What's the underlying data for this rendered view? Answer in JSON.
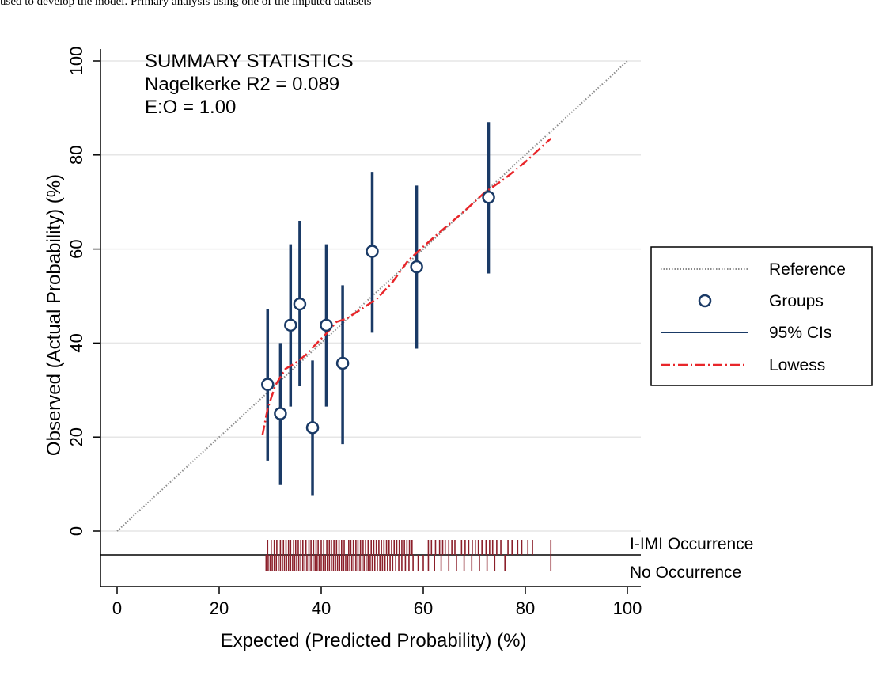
{
  "caption": "used to develop the model. Primary analysis using one of the imputed datasets",
  "colors": {
    "grid": "#e6e6e6",
    "reference": "#8a8a8a",
    "groups": "#1a3a66",
    "ci": "#1a3a66",
    "lowess": "#e8262a",
    "rug": "#8b1f2a",
    "axis": "#000000"
  },
  "chart_data": {
    "type": "scatter",
    "xlabel": "Expected (Predicted Probability) (%)",
    "ylabel": "Observed (Actual Probability) (%)",
    "xlim": [
      0,
      100
    ],
    "ylim": [
      0,
      100
    ],
    "xticks": [
      0,
      20,
      40,
      60,
      80,
      100
    ],
    "yticks": [
      0,
      20,
      40,
      60,
      80,
      100
    ],
    "grid": true,
    "summary": {
      "heading": "SUMMARY STATISTICS",
      "r2": "Nagelkerke R2 = 0.089",
      "eo": "E:O = 1.00"
    },
    "legend": {
      "placement": "right",
      "entries": [
        "Reference",
        "Groups",
        "95% CIs",
        "Lowess"
      ]
    },
    "reference_line": {
      "x": [
        0,
        100
      ],
      "y": [
        0,
        100
      ]
    },
    "groups": [
      {
        "x": 29.5,
        "y": 31.2,
        "lo": 15.0,
        "hi": 47.2
      },
      {
        "x": 32.0,
        "y": 25.0,
        "lo": 9.8,
        "hi": 40.0
      },
      {
        "x": 34.0,
        "y": 43.8,
        "lo": 26.5,
        "hi": 61.0
      },
      {
        "x": 35.8,
        "y": 48.3,
        "lo": 30.8,
        "hi": 66.0
      },
      {
        "x": 38.3,
        "y": 22.0,
        "lo": 7.5,
        "hi": 36.3
      },
      {
        "x": 41.0,
        "y": 43.8,
        "lo": 26.5,
        "hi": 61.0
      },
      {
        "x": 44.2,
        "y": 35.7,
        "lo": 18.5,
        "hi": 52.3
      },
      {
        "x": 50.0,
        "y": 59.5,
        "lo": 42.2,
        "hi": 76.4
      },
      {
        "x": 58.7,
        "y": 56.2,
        "lo": 38.8,
        "hi": 73.5
      },
      {
        "x": 72.8,
        "y": 71.0,
        "lo": 54.8,
        "hi": 87.0
      }
    ],
    "lowess": {
      "x": [
        28.5,
        29.5,
        31.0,
        33.0,
        35.0,
        37.0,
        39.0,
        41.0,
        43.0,
        45.0,
        48.0,
        51.0,
        54.0,
        57.0,
        60.0,
        64.0,
        68.0,
        72.0,
        76.0,
        80.0,
        85.0
      ],
      "y": [
        20.5,
        26.0,
        31.0,
        34.5,
        35.8,
        37.5,
        39.8,
        42.0,
        44.5,
        45.2,
        47.3,
        49.5,
        53.0,
        57.5,
        60.5,
        64.3,
        68.0,
        72.0,
        75.0,
        78.5,
        83.5
      ]
    },
    "rug": {
      "top_label": "I-IMI Occurrence",
      "bottom_label": "No Occurrence",
      "occurrence_x": [
        29.5,
        30.2,
        30.8,
        31.3,
        32.0,
        32.6,
        33.1,
        33.6,
        34.0,
        34.6,
        35.0,
        35.5,
        36.0,
        36.4,
        37.0,
        37.6,
        38.0,
        38.5,
        39.0,
        39.4,
        40.0,
        40.5,
        41.1,
        41.6,
        42.0,
        42.5,
        43.0,
        43.5,
        44.0,
        44.5,
        45.4,
        45.8,
        46.3,
        46.8,
        47.2,
        47.7,
        48.2,
        48.7,
        49.2,
        49.8,
        50.3,
        50.8,
        51.3,
        51.8,
        52.3,
        52.8,
        53.3,
        53.8,
        54.3,
        54.8,
        55.3,
        55.8,
        56.3,
        56.8,
        57.3,
        57.8,
        61.0,
        61.6,
        62.4,
        63.2,
        63.8,
        64.3,
        65.0,
        65.6,
        66.2,
        67.5,
        68.2,
        68.9,
        69.6,
        70.2,
        70.8,
        71.5,
        72.3,
        73.0,
        73.6,
        74.4,
        75.2,
        76.6,
        77.4,
        78.5,
        79.3,
        80.5,
        81.4,
        85.0
      ],
      "no_occurrence_x": [
        29.2,
        29.6,
        30.0,
        30.4,
        30.8,
        31.2,
        31.6,
        32.0,
        32.4,
        32.8,
        33.2,
        33.6,
        34.0,
        34.4,
        34.8,
        35.2,
        35.6,
        36.0,
        36.4,
        36.8,
        37.2,
        37.6,
        38.0,
        38.4,
        38.8,
        39.2,
        39.6,
        40.0,
        40.4,
        40.8,
        41.2,
        41.6,
        42.0,
        42.4,
        42.8,
        43.2,
        43.6,
        44.0,
        44.4,
        44.8,
        45.2,
        45.6,
        46.0,
        46.4,
        46.8,
        47.2,
        47.6,
        48.0,
        48.4,
        48.8,
        49.2,
        49.6,
        50.0,
        50.5,
        51.0,
        51.5,
        52.0,
        52.5,
        53.0,
        53.5,
        54.0,
        54.6,
        55.2,
        55.8,
        56.5,
        57.2,
        58.0,
        59.0,
        60.0,
        61.0,
        62.2,
        63.5,
        65.0,
        66.5,
        68.0,
        69.5,
        71.0,
        72.5,
        74.0,
        76.0,
        85.0
      ]
    }
  }
}
